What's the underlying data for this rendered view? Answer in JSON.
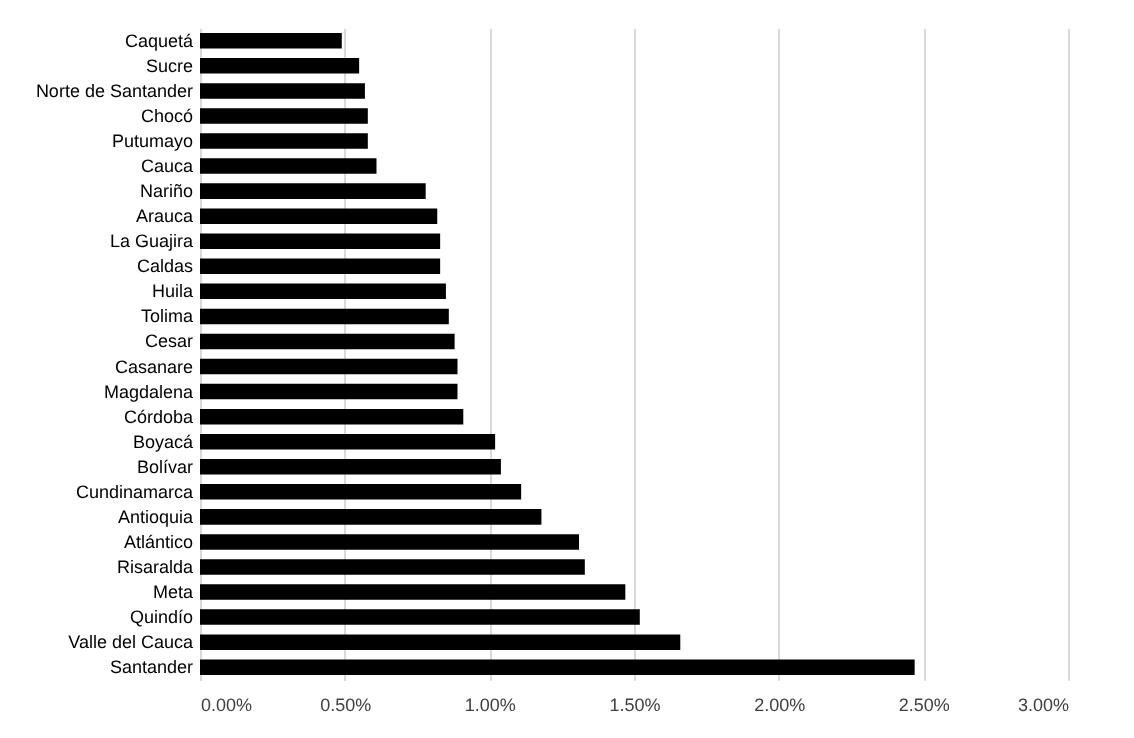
{
  "chart_data": {
    "type": "bar",
    "orientation": "horizontal",
    "categories": [
      "Caquetá",
      "Sucre",
      "Norte de Santander",
      "Chocó",
      "Putumayo",
      "Cauca",
      "Nariño",
      "Arauca",
      "La Guajira",
      "Caldas",
      "Huila",
      "Tolima",
      "Cesar",
      "Casanare",
      "Magdalena",
      "Córdoba",
      "Boyacá",
      "Bolívar",
      "Cundinamarca",
      "Antioquia",
      "Atlántico",
      "Risaralda",
      "Meta",
      "Quindío",
      "Valle del Cauca",
      "Santander"
    ],
    "values": [
      0.49,
      0.55,
      0.57,
      0.58,
      0.58,
      0.61,
      0.78,
      0.82,
      0.83,
      0.83,
      0.85,
      0.86,
      0.88,
      0.89,
      0.89,
      0.91,
      1.02,
      1.04,
      1.11,
      1.18,
      1.31,
      1.33,
      1.47,
      1.52,
      1.66,
      2.47
    ],
    "color": "#000000",
    "xlim": [
      0,
      3
    ],
    "xticks": [
      {
        "value": 0,
        "label": "0.00%"
      },
      {
        "value": 0.5,
        "label": "0.50%"
      },
      {
        "value": 1,
        "label": "1.00%"
      },
      {
        "value": 1.5,
        "label": "1.50%"
      },
      {
        "value": 2,
        "label": "2.00%"
      },
      {
        "value": 2.5,
        "label": "2.50%"
      },
      {
        "value": 3,
        "label": "3.00%"
      }
    ],
    "grid": "x"
  }
}
